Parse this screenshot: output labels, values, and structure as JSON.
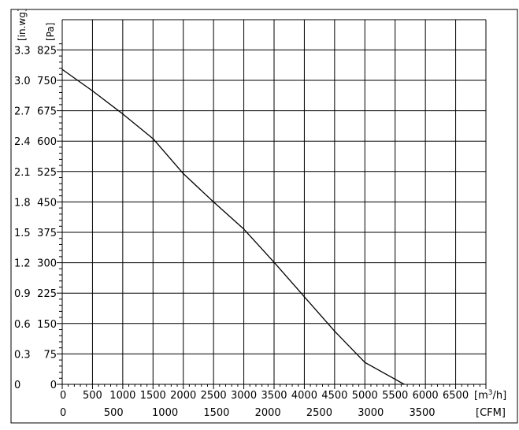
{
  "chart_data": {
    "type": "line",
    "title": "",
    "x_axis_primary": {
      "unit_label": "[m",
      "unit_superscript": "3",
      "unit_suffix": "/h]",
      "range": [
        0,
        7000
      ],
      "ticks": [
        {
          "value": 0,
          "label": "0"
        },
        {
          "value": 500,
          "label": "500"
        },
        {
          "value": 1000,
          "label": "1000"
        },
        {
          "value": 1500,
          "label": "1500"
        },
        {
          "value": 2000,
          "label": "2000"
        },
        {
          "value": 2500,
          "label": "2500"
        },
        {
          "value": 3000,
          "label": "3000"
        },
        {
          "value": 3500,
          "label": "3500"
        },
        {
          "value": 4000,
          "label": "4000"
        },
        {
          "value": 4500,
          "label": "4500"
        },
        {
          "value": 5000,
          "label": "5000"
        },
        {
          "value": 5500,
          "label": "5500"
        },
        {
          "value": 6000,
          "label": "6000"
        },
        {
          "value": 6500,
          "label": "6500"
        }
      ]
    },
    "x_axis_secondary": {
      "unit_label": "[CFM]",
      "ticks": [
        {
          "value": 0,
          "label": "0"
        },
        {
          "value": 500,
          "label": "500"
        },
        {
          "value": 1000,
          "label": "1000"
        },
        {
          "value": 1500,
          "label": "1500"
        },
        {
          "value": 2000,
          "label": "2000"
        },
        {
          "value": 2500,
          "label": "2500"
        },
        {
          "value": 3000,
          "label": "3000"
        },
        {
          "value": 3500,
          "label": "3500"
        }
      ]
    },
    "y_axis_primary": {
      "unit_label": "[Pa]",
      "range": [
        0,
        850
      ],
      "ticks": [
        {
          "value": 0,
          "label": "0"
        },
        {
          "value": 75,
          "label": "75"
        },
        {
          "value": 150,
          "label": "150"
        },
        {
          "value": 225,
          "label": "225"
        },
        {
          "value": 300,
          "label": "300"
        },
        {
          "value": 375,
          "label": "375"
        },
        {
          "value": 450,
          "label": "450"
        },
        {
          "value": 525,
          "label": "525"
        },
        {
          "value": 600,
          "label": "600"
        },
        {
          "value": 675,
          "label": "675"
        },
        {
          "value": 750,
          "label": "750"
        },
        {
          "value": 825,
          "label": "825"
        }
      ]
    },
    "y_axis_secondary": {
      "unit_label": "[in.wg]",
      "ticks": [
        {
          "value": 0,
          "label": "0"
        },
        {
          "value": 0.3,
          "label": "0.3"
        },
        {
          "value": 0.6,
          "label": "0.6"
        },
        {
          "value": 0.9,
          "label": "0.9"
        },
        {
          "value": 1.2,
          "label": "1.2"
        },
        {
          "value": 1.5,
          "label": "1.5"
        },
        {
          "value": 1.8,
          "label": "1.8"
        },
        {
          "value": 2.1,
          "label": "2.1"
        },
        {
          "value": 2.4,
          "label": "2.4"
        },
        {
          "value": 2.7,
          "label": "2.7"
        },
        {
          "value": 3.0,
          "label": "3.0"
        },
        {
          "value": 3.3,
          "label": "3.3"
        }
      ]
    },
    "grid": true,
    "series": [
      {
        "color": "#000000",
        "points": [
          {
            "x": 0,
            "y": 777
          },
          {
            "x": 500,
            "y": 724
          },
          {
            "x": 1000,
            "y": 667
          },
          {
            "x": 1500,
            "y": 606
          },
          {
            "x": 2000,
            "y": 520
          },
          {
            "x": 2500,
            "y": 450
          },
          {
            "x": 3000,
            "y": 383
          },
          {
            "x": 3500,
            "y": 301
          },
          {
            "x": 4000,
            "y": 216
          },
          {
            "x": 4500,
            "y": 131
          },
          {
            "x": 5000,
            "y": 54
          },
          {
            "x": 5650,
            "y": 0
          }
        ]
      }
    ]
  }
}
